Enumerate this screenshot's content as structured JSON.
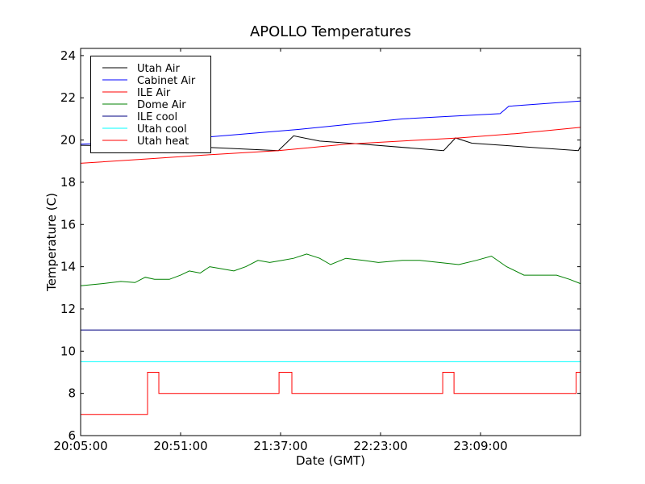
{
  "chart_data": {
    "type": "line",
    "title": "APOLLO Temperatures",
    "xlabel": "Date (GMT)",
    "ylabel": "Temperature (C)",
    "x_unit": "minutes since 20:05:00",
    "xlim": [
      0,
      230
    ],
    "ylim": [
      6,
      24.34
    ],
    "xticks": [
      0,
      46,
      92,
      138,
      184
    ],
    "xtick_labels": [
      "20:05:00",
      "20:51:00",
      "21:37:00",
      "22:23:00",
      "23:09:00"
    ],
    "yticks": [
      6,
      8,
      10,
      12,
      14,
      16,
      18,
      20,
      22,
      24
    ],
    "ytick_labels": [
      "6",
      "8",
      "10",
      "12",
      "14",
      "16",
      "18",
      "20",
      "22",
      "24"
    ],
    "grid": false,
    "legend_position": "top-left",
    "series": [
      {
        "name": "Utah Air",
        "color": "#000000",
        "x": [
          0,
          30,
          59,
          91,
          98,
          110,
          130,
          167,
          172.5,
          180,
          229,
          230
        ],
        "y": [
          19.75,
          19.7,
          19.65,
          19.5,
          20.2,
          19.95,
          19.8,
          19.5,
          20.1,
          19.85,
          19.5,
          19.7
        ]
      },
      {
        "name": "Cabinet Air",
        "color": "#0000ff",
        "x": [
          0,
          30,
          59,
          100,
          148,
          193,
          197,
          210,
          230
        ],
        "y": [
          19.8,
          19.95,
          20.15,
          20.5,
          21.0,
          21.25,
          21.6,
          21.7,
          21.85
        ]
      },
      {
        "name": "ILE Air",
        "color": "#ff0000",
        "x": [
          0,
          30,
          59,
          91,
          122,
          156,
          174,
          200,
          230
        ],
        "y": [
          18.9,
          19.1,
          19.3,
          19.5,
          19.8,
          20.0,
          20.1,
          20.3,
          20.6
        ]
      },
      {
        "name": "Dome Air",
        "color": "#008000",
        "x": [
          0,
          10,
          18.5,
          25,
          29.7,
          34,
          40.8,
          46,
          50,
          55,
          59.4,
          65,
          70.5,
          76,
          81.6,
          87,
          92.7,
          98,
          104,
          110,
          115,
          122,
          130,
          137,
          148,
          156,
          165,
          174,
          182,
          189,
          196,
          204,
          212,
          219,
          225,
          230
        ],
        "y": [
          13.1,
          13.2,
          13.3,
          13.25,
          13.5,
          13.4,
          13.4,
          13.6,
          13.8,
          13.7,
          14.0,
          13.9,
          13.8,
          14.0,
          14.3,
          14.2,
          14.3,
          14.4,
          14.6,
          14.4,
          14.1,
          14.4,
          14.3,
          14.2,
          14.3,
          14.3,
          14.2,
          14.1,
          14.3,
          14.5,
          14.0,
          13.6,
          13.6,
          13.6,
          13.4,
          13.2
        ]
      },
      {
        "name": "ILE cool",
        "color": "#000080",
        "x": [
          0,
          230
        ],
        "y": [
          11,
          11
        ]
      },
      {
        "name": "Utah cool",
        "color": "#00ffff",
        "x": [
          0,
          230
        ],
        "y": [
          9.5,
          9.5
        ]
      },
      {
        "name": "Utah heat",
        "color": "#ff0000",
        "x": [
          0,
          30.8,
          30.8,
          36,
          36,
          91.3,
          91.3,
          97.2,
          97.2,
          166.6,
          166.6,
          171.8,
          171.8,
          228,
          228,
          230
        ],
        "y": [
          7,
          7,
          9,
          9,
          8,
          8,
          9,
          9,
          8,
          8,
          9,
          9,
          8,
          8,
          9,
          9
        ]
      }
    ]
  }
}
